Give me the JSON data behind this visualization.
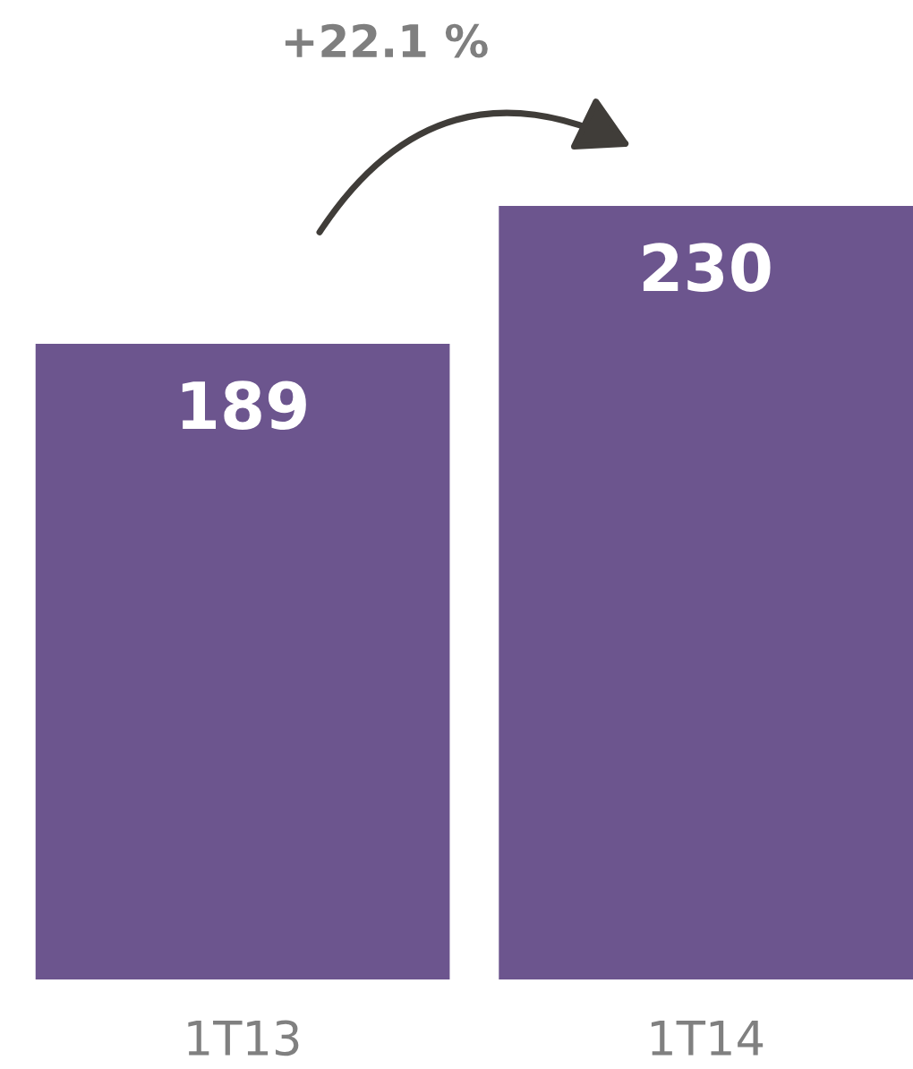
{
  "chart_data": {
    "type": "bar",
    "categories": [
      "1T13",
      "1T14"
    ],
    "values": [
      189,
      230
    ],
    "color": "#6c558e",
    "data_labels": true,
    "tick_labels": "x",
    "annotations": [
      "+22.1 %"
    ]
  }
}
